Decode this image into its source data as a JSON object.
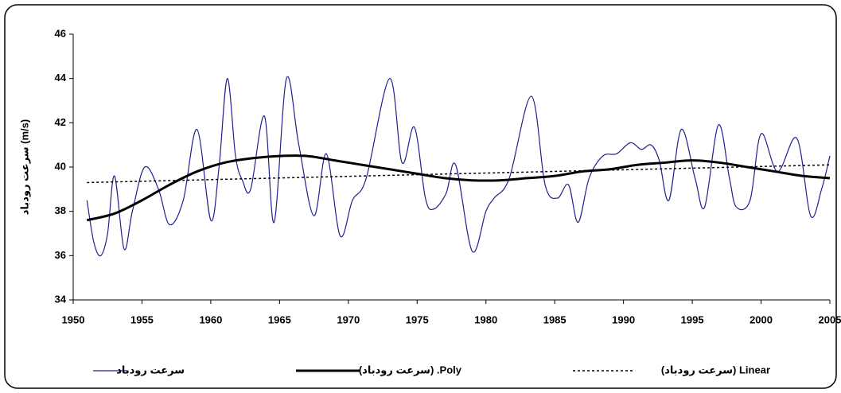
{
  "chart_data": {
    "type": "line",
    "y_label": "سرعت رودباد (m/s)",
    "xlim": [
      1950,
      2005
    ],
    "xticks": [
      1950,
      1955,
      1960,
      1965,
      1970,
      1975,
      1980,
      1985,
      1990,
      1995,
      2000,
      2005
    ],
    "ylim": [
      34,
      46
    ],
    "yticks": [
      34,
      36,
      38,
      40,
      42,
      44,
      46
    ],
    "series": [
      {
        "name": "سرعت رودباد",
        "color": "#1f1f8f",
        "style": "solid",
        "width": 1.2,
        "x": [
          1951,
          1951.5,
          1952,
          1952.5,
          1953,
          1953.7,
          1954.3,
          1955.2,
          1956.2,
          1957,
          1958,
          1959,
          1960,
          1960.6,
          1961.2,
          1961.8,
          1962.3,
          1962.9,
          1963.9,
          1964.6,
          1965.5,
          1966.4,
          1967.5,
          1968.4,
          1969.4,
          1970.3,
          1971.3,
          1973,
          1973.9,
          1974.8,
          1975.6,
          1976.2,
          1977.1,
          1977.8,
          1979,
          1980,
          1980.6,
          1981.7,
          1983.3,
          1984.3,
          1985.2,
          1986,
          1986.7,
          1987.5,
          1988.5,
          1989.5,
          1990.5,
          1991.3,
          1992,
          1992.6,
          1993.3,
          1994.2,
          1995.2,
          1995.9,
          1996.9,
          1997.7,
          1998.2,
          1999.2,
          2000,
          2001.2,
          2002.6,
          2003.6,
          2004.4,
          2005
        ],
        "values": [
          38.5,
          36.6,
          36.0,
          37.0,
          39.6,
          36.3,
          38.0,
          40.0,
          39.0,
          37.4,
          38.5,
          41.7,
          37.6,
          40.0,
          44.0,
          40.5,
          39.4,
          39.0,
          42.3,
          37.5,
          44.0,
          41.0,
          37.8,
          40.6,
          36.9,
          38.5,
          39.5,
          44.0,
          40.2,
          41.8,
          38.6,
          38.1,
          38.8,
          40.1,
          36.2,
          38.0,
          38.6,
          39.5,
          43.2,
          39.2,
          38.6,
          39.2,
          37.5,
          39.5,
          40.5,
          40.6,
          41.1,
          40.8,
          41.0,
          40.3,
          38.5,
          41.7,
          39.5,
          38.2,
          41.9,
          39.5,
          38.2,
          38.5,
          41.5,
          39.8,
          41.3,
          37.8,
          39.0,
          40.5
        ]
      },
      {
        "name": "Poly. (سرعت رودباد)",
        "color": "#000000",
        "style": "solid",
        "width": 3,
        "x": [
          1951,
          1953,
          1955,
          1957,
          1959,
          1961,
          1963,
          1965,
          1967,
          1969,
          1971,
          1973,
          1975,
          1977,
          1979,
          1981,
          1983,
          1985,
          1987,
          1989,
          1991,
          1993,
          1995,
          1997,
          1999,
          2001,
          2003,
          2005
        ],
        "values": [
          37.6,
          37.9,
          38.5,
          39.2,
          39.8,
          40.2,
          40.4,
          40.5,
          40.5,
          40.3,
          40.1,
          39.9,
          39.7,
          39.5,
          39.4,
          39.4,
          39.5,
          39.6,
          39.8,
          39.9,
          40.1,
          40.2,
          40.3,
          40.2,
          40.0,
          39.8,
          39.6,
          39.5
        ]
      },
      {
        "name": "Linear (سرعت رودباد)",
        "color": "#000000",
        "style": "dotted",
        "width": 1.5,
        "x": [
          1951,
          2005
        ],
        "values": [
          39.3,
          40.1
        ]
      }
    ]
  }
}
